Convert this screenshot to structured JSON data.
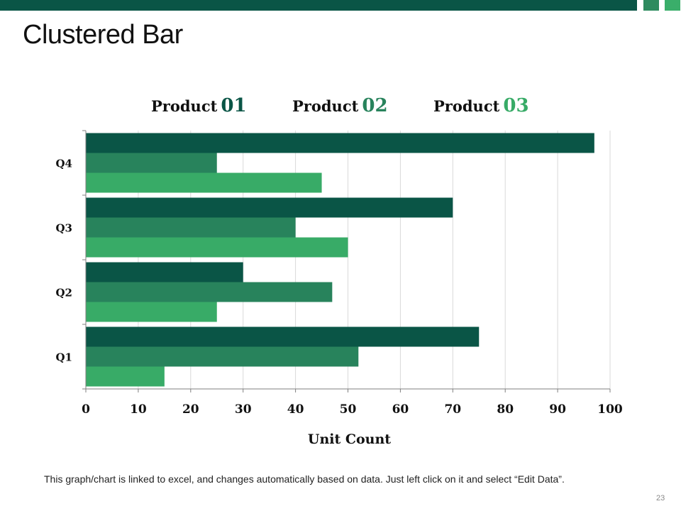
{
  "slide": {
    "title": "Clustered Bar",
    "footnote": "This graph/chart is linked to excel, and changes automatically  based on data. Just left click on it and select “Edit Data”.",
    "page_number": "23"
  },
  "colors": {
    "product1": "#0a5546",
    "product2": "#28835c",
    "product3": "#38ab67",
    "grid": "#d9d9d9",
    "axis": "#7f7f7f"
  },
  "chart_data": {
    "type": "bar",
    "orientation": "horizontal",
    "title": "",
    "categories": [
      "Q1",
      "Q2",
      "Q3",
      "Q4"
    ],
    "series": [
      {
        "name": "Product 01",
        "word": "Product",
        "number": "01",
        "values": [
          75,
          30,
          70,
          97
        ]
      },
      {
        "name": "Product 02",
        "word": "Product",
        "number": "02",
        "values": [
          52,
          47,
          40,
          25
        ]
      },
      {
        "name": "Product 03",
        "word": "Product",
        "number": "03",
        "values": [
          15,
          25,
          50,
          45
        ]
      }
    ],
    "xlabel": "Unit Count",
    "ylabel": "",
    "xlim": [
      0,
      100
    ],
    "xticks": [
      "0",
      "10",
      "20",
      "30",
      "40",
      "50",
      "60",
      "70",
      "80",
      "90",
      "100"
    ],
    "grid": true,
    "legend": "top"
  }
}
